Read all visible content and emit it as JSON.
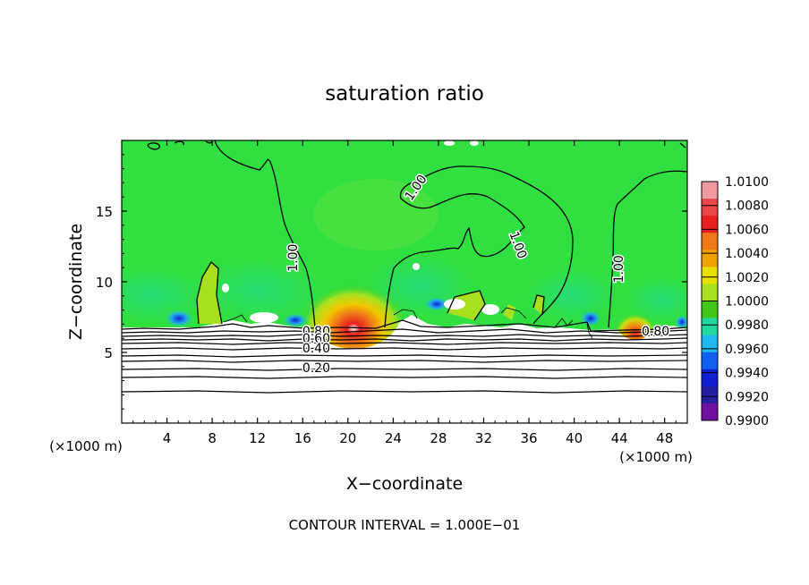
{
  "chart_data": {
    "type": "heatmap",
    "title": "saturation ratio",
    "xlabel": "X−coordinate",
    "ylabel": "Z−coordinate",
    "x_unit": "(×1000 m)",
    "y_unit": "(×1000 m)",
    "xlim": [
      0,
      50
    ],
    "ylim": [
      0,
      20
    ],
    "x_ticks": [
      4,
      8,
      12,
      16,
      20,
      24,
      28,
      32,
      36,
      40,
      44,
      48
    ],
    "y_ticks": [
      5,
      10,
      15
    ],
    "colorbar": {
      "levels": [
        "1.0100",
        "1.0080",
        "1.0060",
        "1.0040",
        "1.0020",
        "1.0000",
        "0.9980",
        "0.9960",
        "0.9940",
        "0.9920",
        "0.9900"
      ],
      "colors": [
        "#f09aa0",
        "#e84848",
        "#e82020",
        "#f07818",
        "#f0a000",
        "#e8e000",
        "#a8e020",
        "#40c818",
        "#20d8a0",
        "#20b8f0",
        "#1060f0",
        "#1020d0",
        "#2020a0",
        "#7010a0"
      ]
    },
    "surface_color": "#30e040",
    "contour_labels": [
      {
        "text": "1.00",
        "x": 15.5,
        "z": 11.7
      },
      {
        "text": "1.00",
        "x": 26.3,
        "z": 16.5
      },
      {
        "text": "1.00",
        "x": 34.7,
        "z": 12.5
      },
      {
        "text": "1.00",
        "x": 44.3,
        "z": 10.9
      },
      {
        "text": "0.80",
        "x": 17.2,
        "z": 6.2
      },
      {
        "text": "0.60",
        "x": 17.2,
        "z": 5.7
      },
      {
        "text": "0.40",
        "x": 17.2,
        "z": 5.0
      },
      {
        "text": "0.20",
        "x": 17.2,
        "z": 3.6
      },
      {
        "text": "0.80",
        "x": 47.2,
        "z": 6.2
      }
    ],
    "warm_cores": [
      {
        "x": 20.5,
        "z": 7.4,
        "level": "1.0080"
      },
      {
        "x": 45.2,
        "z": 7.0,
        "level": "1.0060"
      }
    ]
  },
  "footer": {
    "contour_interval": "CONTOUR INTERVAL = 1.000E−01"
  }
}
